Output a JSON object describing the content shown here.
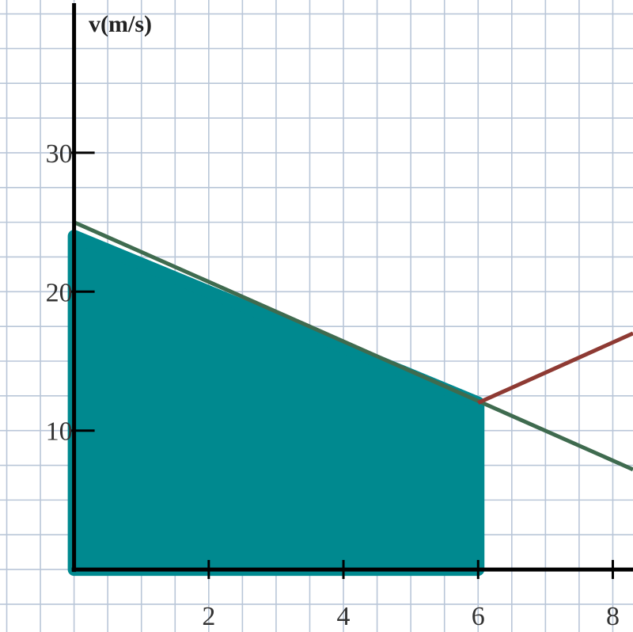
{
  "chart_data": {
    "type": "line",
    "title": "",
    "xlabel": "",
    "ylabel": "v(m/s)",
    "xlim": [
      -1.1,
      8.3
    ],
    "ylim": [
      -4.5,
      41
    ],
    "xticks": [
      2,
      4,
      6,
      8
    ],
    "x_tick_labels": [
      "2",
      "4",
      "6",
      "8"
    ],
    "yticks": [
      10,
      20,
      30
    ],
    "y_tick_labels": [
      "10",
      "20",
      "30"
    ],
    "grid": true,
    "x_grid_step": 0.5,
    "y_grid_step": 2.5,
    "series": [
      {
        "color": "#3f6b4f",
        "x": [
          0,
          8.3
        ],
        "y": [
          25,
          7.2
        ]
      },
      {
        "color": "#8e3a33",
        "x": [
          6,
          8.3
        ],
        "y": [
          12,
          17
        ]
      }
    ],
    "shaded_region": {
      "color": "#00898f",
      "vertices": [
        [
          0,
          0
        ],
        [
          0,
          24
        ],
        [
          6,
          12
        ],
        [
          6,
          0
        ]
      ]
    }
  }
}
